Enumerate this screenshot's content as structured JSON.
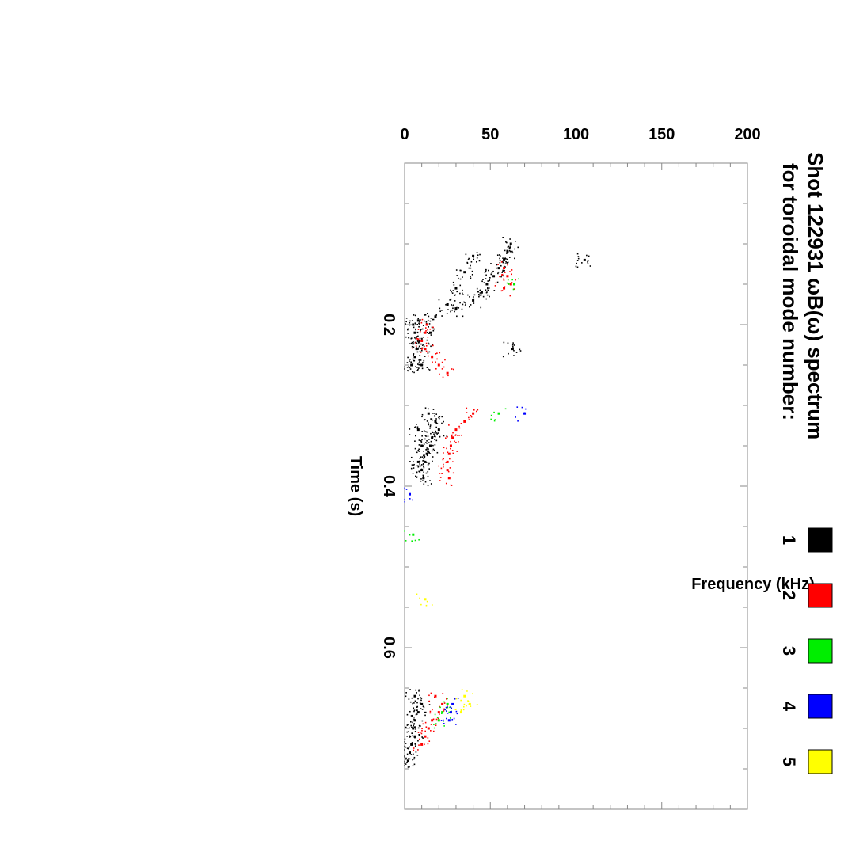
{
  "chart_data": {
    "type": "scatter",
    "orientation": "rotated-90-clockwise",
    "title_line1": "Shot 122931 ωB(ω) spectrum",
    "title_line2": "for toroidal mode number:",
    "xlabel": "Time (s)",
    "ylabel": "Frequency (kHz)",
    "xlim": [
      0,
      0.8
    ],
    "ylim": [
      0,
      200
    ],
    "xticks": [
      "0.2",
      "0.4",
      "0.6"
    ],
    "xtick_values": [
      0.2,
      0.4,
      0.6
    ],
    "yticks": [
      "0",
      "50",
      "100",
      "150",
      "200"
    ],
    "ytick_values": [
      0,
      50,
      100,
      150,
      200
    ],
    "legend": [
      {
        "label": "1",
        "color": "#000000"
      },
      {
        "label": "2",
        "color": "#ff0000"
      },
      {
        "label": "3",
        "color": "#00ee00"
      },
      {
        "label": "4",
        "color": "#0000ff"
      },
      {
        "label": "5",
        "color": "#ffff00"
      }
    ],
    "series": [
      {
        "name": "1",
        "color": "#000000",
        "points": [
          [
            0.1,
            62
          ],
          [
            0.11,
            60
          ],
          [
            0.12,
            58
          ],
          [
            0.13,
            55
          ],
          [
            0.14,
            52
          ],
          [
            0.15,
            48
          ],
          [
            0.16,
            45
          ],
          [
            0.17,
            40
          ],
          [
            0.18,
            30
          ],
          [
            0.19,
            18
          ],
          [
            0.115,
            40
          ],
          [
            0.135,
            35
          ],
          [
            0.155,
            30
          ],
          [
            0.175,
            25
          ],
          [
            0.195,
            8
          ],
          [
            0.2,
            5
          ],
          [
            0.21,
            6
          ],
          [
            0.22,
            8
          ],
          [
            0.23,
            7
          ],
          [
            0.24,
            6
          ],
          [
            0.25,
            4
          ],
          [
            0.21,
            15
          ],
          [
            0.23,
            12
          ],
          [
            0.25,
            10
          ],
          [
            0.31,
            14
          ],
          [
            0.32,
            18
          ],
          [
            0.33,
            20
          ],
          [
            0.34,
            16
          ],
          [
            0.35,
            15
          ],
          [
            0.36,
            13
          ],
          [
            0.37,
            12
          ],
          [
            0.38,
            10
          ],
          [
            0.39,
            11
          ],
          [
            0.33,
            8
          ],
          [
            0.35,
            10
          ],
          [
            0.37,
            8
          ],
          [
            0.66,
            6
          ],
          [
            0.67,
            10
          ],
          [
            0.68,
            8
          ],
          [
            0.69,
            6
          ],
          [
            0.7,
            5
          ],
          [
            0.71,
            6
          ],
          [
            0.72,
            4
          ],
          [
            0.73,
            3
          ],
          [
            0.74,
            2
          ],
          [
            0.12,
            105
          ],
          [
            0.23,
            63
          ]
        ]
      },
      {
        "name": "2",
        "color": "#ff0000",
        "points": [
          [
            0.13,
            58
          ],
          [
            0.14,
            60
          ],
          [
            0.15,
            62
          ],
          [
            0.155,
            58
          ],
          [
            0.2,
            13
          ],
          [
            0.21,
            12
          ],
          [
            0.22,
            10
          ],
          [
            0.23,
            12
          ],
          [
            0.24,
            16
          ],
          [
            0.25,
            20
          ],
          [
            0.26,
            25
          ],
          [
            0.31,
            40
          ],
          [
            0.32,
            35
          ],
          [
            0.33,
            30
          ],
          [
            0.34,
            28
          ],
          [
            0.35,
            27
          ],
          [
            0.36,
            26
          ],
          [
            0.37,
            25
          ],
          [
            0.38,
            25
          ],
          [
            0.39,
            26
          ],
          [
            0.66,
            18
          ],
          [
            0.67,
            22
          ],
          [
            0.68,
            20
          ],
          [
            0.69,
            16
          ],
          [
            0.7,
            14
          ],
          [
            0.71,
            12
          ],
          [
            0.72,
            10
          ]
        ]
      },
      {
        "name": "3",
        "color": "#00ee00",
        "points": [
          [
            0.15,
            64
          ],
          [
            0.31,
            55
          ],
          [
            0.46,
            5
          ],
          [
            0.67,
            25
          ],
          [
            0.68,
            22
          ],
          [
            0.69,
            20
          ]
        ]
      },
      {
        "name": "4",
        "color": "#0000ff",
        "points": [
          [
            0.31,
            70
          ],
          [
            0.41,
            3
          ],
          [
            0.67,
            28
          ],
          [
            0.68,
            27
          ],
          [
            0.69,
            26
          ]
        ]
      },
      {
        "name": "5",
        "color": "#ffff00",
        "points": [
          [
            0.54,
            12
          ],
          [
            0.66,
            35
          ],
          [
            0.67,
            38
          ],
          [
            0.68,
            33
          ]
        ]
      }
    ]
  }
}
